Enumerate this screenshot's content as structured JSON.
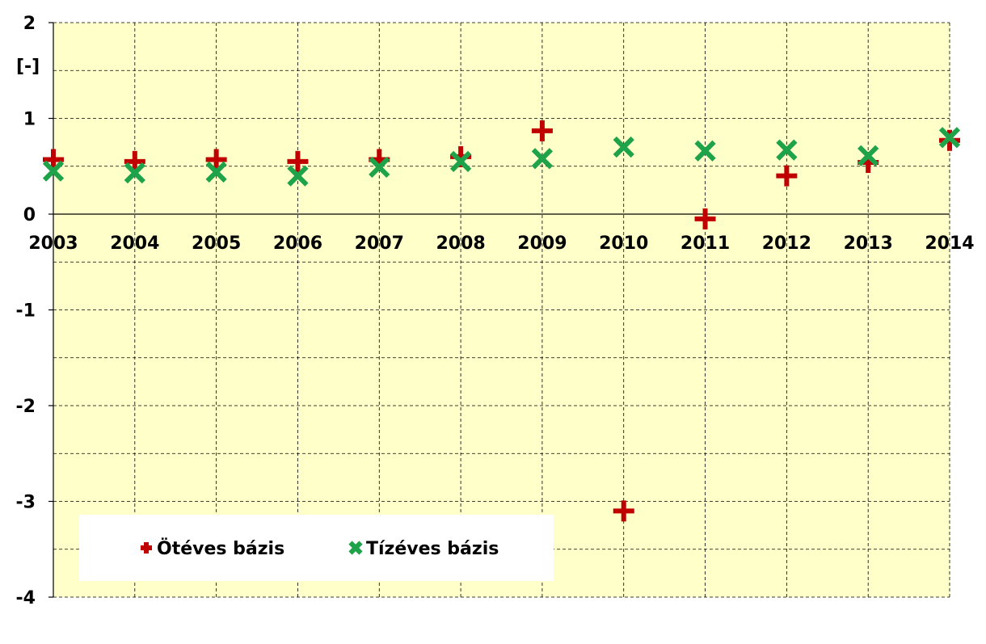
{
  "chart_data": {
    "type": "scatter",
    "title": "",
    "xlabel": "",
    "ylabel": "[-]",
    "x": [
      "2003",
      "2004",
      "2005",
      "2006",
      "2007",
      "2008",
      "2009",
      "2010",
      "2011",
      "2012",
      "2013",
      "2014"
    ],
    "xlim": [
      2003,
      2014
    ],
    "ylim": [
      -4,
      2
    ],
    "yticks": [
      2,
      1,
      0,
      -1,
      -2,
      -3,
      -4
    ],
    "grid": true,
    "legend_position": "bottom-left",
    "plot_background": "#FFFFC9",
    "series": [
      {
        "name": "Ötéves bázis",
        "marker": "plus",
        "color": "#C00000",
        "values": [
          0.57,
          0.55,
          0.57,
          0.55,
          0.57,
          0.6,
          0.87,
          -3.1,
          -0.05,
          0.4,
          0.54,
          0.77
        ]
      },
      {
        "name": "Tízéves bázis",
        "marker": "x",
        "color": "#1EA34A",
        "values": [
          0.45,
          0.43,
          0.44,
          0.4,
          0.49,
          0.55,
          0.58,
          0.7,
          0.66,
          0.67,
          0.61,
          0.8
        ]
      }
    ]
  }
}
